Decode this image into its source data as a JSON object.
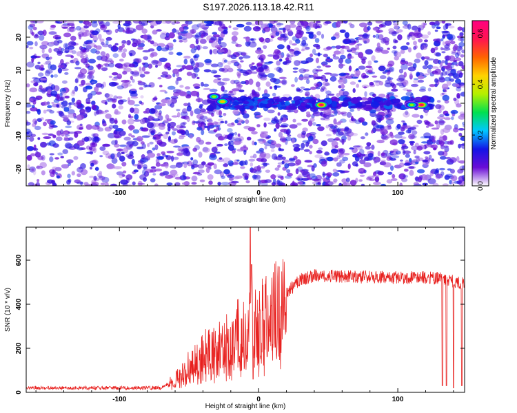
{
  "title": "S197.2026.113.18.42.R11",
  "colors": {
    "signal": "#e8211f",
    "frame": "#000000"
  },
  "chart_data": [
    {
      "type": "heatmap",
      "xlabel": "Height of straight line (km)",
      "ylabel": "Frequency (Hz)",
      "xlim": [
        -167,
        148
      ],
      "ylim": [
        -25,
        25
      ],
      "xticks": [
        -100,
        0,
        100
      ],
      "yticks": [
        -20,
        -10,
        0,
        10,
        20
      ],
      "colorbar": {
        "label": "Normalized spectral amplitude",
        "range": [
          0.0,
          0.65
        ],
        "ticks": [
          0.0,
          0.2,
          0.4,
          0.6
        ],
        "colormap": [
          "#ffffff",
          "#6a0dd6",
          "#1414e6",
          "#00c8ff",
          "#00e050",
          "#b4f000",
          "#ffd200",
          "#ff6400",
          "#ff1450",
          "#ff0080"
        ]
      },
      "background_noise_level": 0.08,
      "hot_spots": [
        {
          "x": -32,
          "y": 2,
          "value": 0.35
        },
        {
          "x": -26,
          "y": 0.5,
          "value": 0.45
        },
        {
          "x": 45,
          "y": -0.5,
          "value": 0.62
        },
        {
          "x": 117,
          "y": -0.5,
          "value": 0.62
        },
        {
          "x": 110,
          "y": -0.5,
          "value": 0.35
        }
      ],
      "ridge": {
        "y": 0,
        "x_range": [
          -35,
          125
        ],
        "value": 0.12
      }
    },
    {
      "type": "line",
      "xlabel": "Height of straight line (km)",
      "ylabel": "SNR (10 * v/v)",
      "xlim": [
        -167,
        148
      ],
      "ylim": [
        0,
        750
      ],
      "xticks": [
        -100,
        0,
        100
      ],
      "yticks": [
        0,
        200,
        400,
        600
      ],
      "series": [
        {
          "profile": [
            {
              "x": -167,
              "y": 20
            },
            {
              "x": -70,
              "y": 20
            },
            {
              "x": -60,
              "y": 60
            },
            {
              "x": -50,
              "y": 130
            },
            {
              "x": -40,
              "y": 180
            },
            {
              "x": -30,
              "y": 210
            },
            {
              "x": -20,
              "y": 240
            },
            {
              "x": -10,
              "y": 310
            },
            {
              "x": 0,
              "y": 320
            },
            {
              "x": 10,
              "y": 380
            },
            {
              "x": 20,
              "y": 450
            },
            {
              "x": 30,
              "y": 510
            },
            {
              "x": 40,
              "y": 530
            },
            {
              "x": 60,
              "y": 525
            },
            {
              "x": 100,
              "y": 520
            },
            {
              "x": 130,
              "y": 520
            },
            {
              "x": 148,
              "y": 490
            }
          ],
          "spikes": [
            {
              "x": -6,
              "y": 750
            },
            {
              "x": -5,
              "y": 580
            },
            {
              "x": -4,
              "y": 60
            },
            {
              "x": 132,
              "y": 30
            },
            {
              "x": 135,
              "y": 30
            },
            {
              "x": 140,
              "y": 20
            },
            {
              "x": 146,
              "y": 30
            }
          ]
        }
      ]
    }
  ]
}
